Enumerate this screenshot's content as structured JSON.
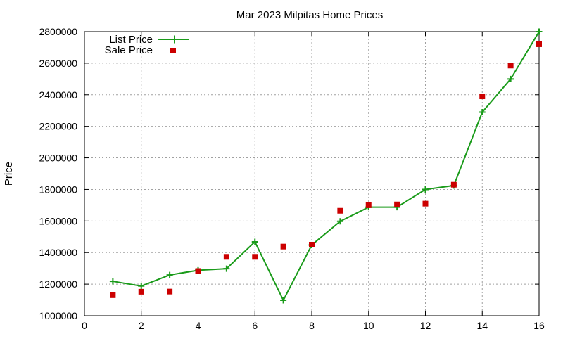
{
  "chart_data": {
    "type": "line",
    "title": "Mar 2023 Milpitas Home Prices",
    "xlabel": "",
    "ylabel": "Price",
    "xlim": [
      0,
      16
    ],
    "ylim": [
      1000000,
      2800000
    ],
    "x_ticks": [
      0,
      2,
      4,
      6,
      8,
      10,
      12,
      14,
      16
    ],
    "y_ticks": [
      1000000,
      1200000,
      1400000,
      1600000,
      1800000,
      2000000,
      2200000,
      2400000,
      2600000,
      2800000
    ],
    "grid": true,
    "legend_position": "top-left",
    "series": [
      {
        "name": "List Price",
        "style": "line-with-plus-markers",
        "color": "#1a9b1a",
        "x": [
          1,
          2,
          3,
          4,
          5,
          6,
          7,
          8,
          9,
          10,
          11,
          12,
          13,
          14,
          15,
          16
        ],
        "values": [
          1218000,
          1188000,
          1258000,
          1288000,
          1298000,
          1468000,
          1098000,
          1448000,
          1598000,
          1688000,
          1688000,
          1800000,
          1825000,
          2290000,
          2500000,
          2800000
        ]
      },
      {
        "name": "Sale Price",
        "style": "square-markers",
        "color": "#cc0000",
        "x": [
          1,
          2,
          3,
          4,
          5,
          6,
          7,
          8,
          9,
          10,
          11,
          12,
          13,
          14,
          15,
          16
        ],
        "values": [
          1130000,
          1152000,
          1153000,
          1283000,
          1373000,
          1373000,
          1438000,
          1450000,
          1665000,
          1700000,
          1705000,
          1710000,
          1830000,
          2390000,
          2585000,
          2720000
        ]
      }
    ]
  }
}
